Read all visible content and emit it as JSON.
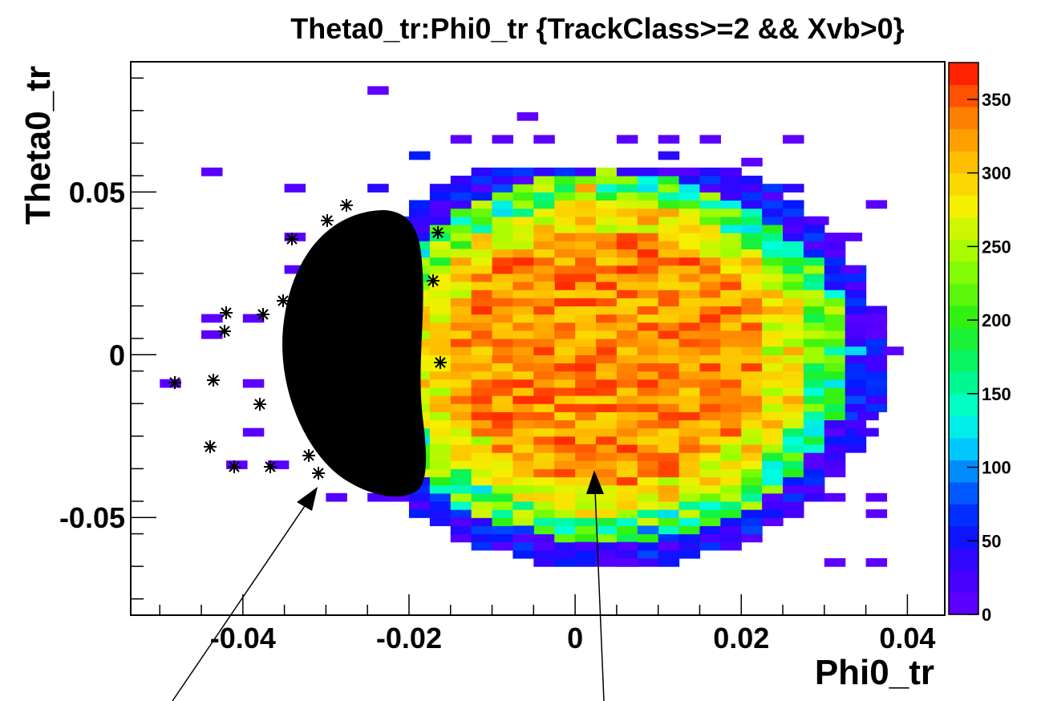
{
  "chart_data": {
    "type": "heatmap",
    "title": "Theta0_tr:Phi0_tr {TrackClass>=2 && Xvb>0}",
    "xlabel": "Phi0_tr",
    "ylabel": "Theta0_tr",
    "xlim": [
      -0.0535,
      0.0445
    ],
    "ylim": [
      -0.08,
      0.09
    ],
    "x_ticks": [
      -0.04,
      -0.02,
      0,
      0.02,
      0.04
    ],
    "x_tick_labels": [
      "-0.04",
      "-0.02",
      "0",
      "0.02",
      "0.04"
    ],
    "y_ticks": [
      -0.05,
      0,
      0.05
    ],
    "y_tick_labels": [
      "-0.05",
      "0",
      "0.05"
    ],
    "colorbar": {
      "range": [
        0,
        375
      ],
      "ticks": [
        0,
        50,
        100,
        150,
        200,
        250,
        300,
        350
      ],
      "tick_labels": [
        "0",
        "50",
        "100",
        "150",
        "200",
        "250",
        "300",
        "350"
      ]
    },
    "bin_size": 0.0025,
    "heatmap_bins": [
      [
        -0.025,
        0.08,
        5
      ],
      [
        -0.007,
        0.072,
        5
      ],
      [
        -0.015,
        0.065,
        8
      ],
      [
        -0.01,
        0.065,
        8
      ],
      [
        -0.005,
        0.065,
        8
      ],
      [
        0.005,
        0.065,
        8
      ],
      [
        0.01,
        0.065,
        8
      ],
      [
        0.015,
        0.065,
        8
      ],
      [
        0.025,
        0.065,
        5
      ],
      [
        -0.045,
        0.055,
        10
      ],
      [
        -0.02,
        0.06,
        60
      ],
      [
        0.01,
        0.06,
        40
      ],
      [
        0.02,
        0.058,
        10
      ],
      [
        -0.035,
        0.05,
        15
      ],
      [
        -0.025,
        0.05,
        40
      ],
      [
        0.025,
        0.05,
        40
      ],
      [
        0.035,
        0.045,
        10
      ],
      [
        0.028,
        0.04,
        15
      ],
      [
        0.032,
        0.035,
        10
      ],
      [
        0.032,
        0.025,
        10
      ],
      [
        -0.035,
        0.035,
        10
      ],
      [
        -0.035,
        0.025,
        10
      ],
      [
        -0.045,
        0.01,
        8
      ],
      [
        -0.04,
        0.01,
        8
      ],
      [
        -0.045,
        0.005,
        8
      ],
      [
        -0.04,
        -0.01,
        8
      ],
      [
        -0.05,
        -0.01,
        8
      ],
      [
        0.035,
        0.01,
        8
      ],
      [
        0.035,
        0.005,
        8
      ],
      [
        0.037,
        0.0,
        8
      ],
      [
        0.034,
        -0.02,
        30
      ],
      [
        0.034,
        -0.025,
        30
      ],
      [
        -0.04,
        -0.025,
        10
      ],
      [
        -0.042,
        -0.035,
        10
      ],
      [
        -0.037,
        -0.035,
        10
      ],
      [
        -0.03,
        -0.045,
        15
      ],
      [
        -0.025,
        -0.045,
        20
      ],
      [
        0.03,
        -0.045,
        10
      ],
      [
        0.035,
        -0.045,
        10
      ],
      [
        0.035,
        -0.05,
        10
      ],
      [
        -0.01,
        -0.06,
        10
      ],
      [
        -0.005,
        -0.06,
        15
      ],
      [
        0.0,
        -0.06,
        20
      ],
      [
        0.005,
        -0.06,
        15
      ],
      [
        0.01,
        -0.06,
        10
      ],
      [
        -0.0075,
        -0.055,
        70
      ],
      [
        0.0075,
        -0.055,
        90
      ],
      [
        0.005,
        -0.065,
        10
      ],
      [
        0.03,
        -0.065,
        5
      ],
      [
        0.035,
        -0.065,
        5
      ],
      [
        0.0,
        0.0,
        320
      ],
      [
        0.005,
        0.005,
        340
      ],
      [
        0.01,
        -0.01,
        330
      ],
      [
        -0.005,
        0.02,
        310
      ],
      [
        0.015,
        0.015,
        300
      ],
      [
        0.0,
        -0.03,
        350
      ],
      [
        0.0075,
        0.04,
        330
      ],
      [
        0.0225,
        0.0,
        230
      ],
      [
        -0.0125,
        0.0,
        290
      ],
      [
        0.0275,
        0.01,
        180
      ],
      [
        0.0325,
        0.0,
        120
      ],
      [
        0.0275,
        -0.02,
        150
      ],
      [
        -0.015,
        0.03,
        260
      ],
      [
        -0.0175,
        -0.03,
        250
      ],
      [
        0.0,
        0.05,
        320
      ]
    ]
  }
}
